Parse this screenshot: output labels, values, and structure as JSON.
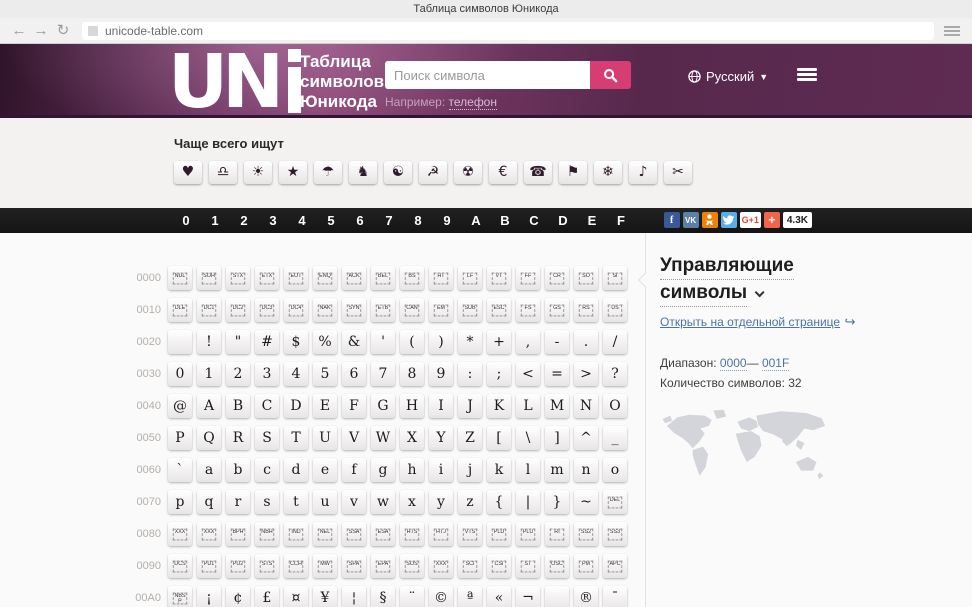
{
  "browser": {
    "title": "Таблица символов Юникода",
    "url": "unicode-table.com",
    "back": "←",
    "forward": "→",
    "reload": "↻"
  },
  "header": {
    "logo_text": "UN",
    "site_title_line1": "Таблица",
    "site_title_line2": "символов",
    "site_title_line3": "Юникода",
    "search_placeholder": "Поиск символа",
    "hint_label": "Например:",
    "hint_link": "телефон",
    "language": "Русский",
    "accent_color": "#d63d72"
  },
  "frequent": {
    "label": "Чаще всего ищут",
    "icons": [
      {
        "name": "heart-icon",
        "glyph": "♥"
      },
      {
        "name": "libra-icon",
        "glyph": "♎"
      },
      {
        "name": "sun-icon",
        "glyph": "☀"
      },
      {
        "name": "star-icon",
        "glyph": "★"
      },
      {
        "name": "umbrella-icon",
        "glyph": "☂"
      },
      {
        "name": "chess-knight-icon",
        "glyph": "♞"
      },
      {
        "name": "yin-yang-icon",
        "glyph": "☯"
      },
      {
        "name": "hammer-sickle-icon",
        "glyph": "☭"
      },
      {
        "name": "radioactive-icon",
        "glyph": "☢"
      },
      {
        "name": "euro-icon",
        "glyph": "€"
      },
      {
        "name": "telephone-icon",
        "glyph": "☎"
      },
      {
        "name": "flag-icon",
        "glyph": "⚑"
      },
      {
        "name": "snowflake-icon",
        "glyph": "❄"
      },
      {
        "name": "music-note-icon",
        "glyph": "♪"
      },
      {
        "name": "scissors-icon",
        "glyph": "✂"
      }
    ]
  },
  "hexbar": {
    "digits": [
      "0",
      "1",
      "2",
      "3",
      "4",
      "5",
      "6",
      "7",
      "8",
      "9",
      "A",
      "B",
      "C",
      "D",
      "E",
      "F"
    ],
    "social": {
      "facebook_label": "f",
      "vk_label": "VK",
      "gplus_label": "G+1",
      "share_label": "+",
      "share_count": "4.3K"
    }
  },
  "table": {
    "rows": [
      {
        "label": "0000",
        "cells": [
          {
            "ctrl": "NUL"
          },
          {
            "ctrl": "SOH"
          },
          {
            "ctrl": "STX"
          },
          {
            "ctrl": "ETX"
          },
          {
            "ctrl": "EOT"
          },
          {
            "ctrl": "ENQ"
          },
          {
            "ctrl": "ACK"
          },
          {
            "ctrl": "BEL"
          },
          {
            "ctrl": "BS"
          },
          {
            "ctrl": "HT"
          },
          {
            "ctrl": "LF"
          },
          {
            "ctrl": "VT"
          },
          {
            "ctrl": "FF"
          },
          {
            "ctrl": "CR"
          },
          {
            "ctrl": "SO"
          },
          {
            "ctrl": "SI"
          }
        ]
      },
      {
        "label": "0010",
        "cells": [
          {
            "ctrl": "DLE"
          },
          {
            "ctrl": "DC1"
          },
          {
            "ctrl": "DC2"
          },
          {
            "ctrl": "DC3"
          },
          {
            "ctrl": "DC4"
          },
          {
            "ctrl": "NAK"
          },
          {
            "ctrl": "SYN"
          },
          {
            "ctrl": "ETB"
          },
          {
            "ctrl": "CAN"
          },
          {
            "ctrl": "EM"
          },
          {
            "ctrl": "SUB"
          },
          {
            "ctrl": "ESC"
          },
          {
            "ctrl": "FS"
          },
          {
            "ctrl": "GS"
          },
          {
            "ctrl": "RS"
          },
          {
            "ctrl": "US"
          }
        ]
      },
      {
        "label": "0020",
        "cells": [
          "",
          "!",
          "\"",
          "#",
          "$",
          "%",
          "&",
          "'",
          "(",
          ")",
          "*",
          "+",
          ",",
          "-",
          ".",
          "/"
        ]
      },
      {
        "label": "0030",
        "cells": [
          "0",
          "1",
          "2",
          "3",
          "4",
          "5",
          "6",
          "7",
          "8",
          "9",
          ":",
          ";",
          "<",
          "=",
          ">",
          "?"
        ]
      },
      {
        "label": "0040",
        "cells": [
          "@",
          "A",
          "B",
          "C",
          "D",
          "E",
          "F",
          "G",
          "H",
          "I",
          "J",
          "K",
          "L",
          "M",
          "N",
          "O"
        ]
      },
      {
        "label": "0050",
        "cells": [
          "P",
          "Q",
          "R",
          "S",
          "T",
          "U",
          "V",
          "W",
          "X",
          "Y",
          "Z",
          "[",
          "\\",
          "]",
          "^",
          "_"
        ]
      },
      {
        "label": "0060",
        "cells": [
          "`",
          "a",
          "b",
          "c",
          "d",
          "e",
          "f",
          "g",
          "h",
          "i",
          "j",
          "k",
          "l",
          "m",
          "n",
          "o"
        ]
      },
      {
        "label": "0070",
        "cells": [
          "p",
          "q",
          "r",
          "s",
          "t",
          "u",
          "v",
          "w",
          "x",
          "y",
          "z",
          "{",
          "|",
          "}",
          "~",
          {
            "ctrl": "DEL"
          }
        ]
      },
      {
        "label": "0080",
        "cells": [
          {
            "ctrl": "XXX"
          },
          {
            "ctrl": "XXX"
          },
          {
            "ctrl": "BPH"
          },
          {
            "ctrl": "NBH"
          },
          {
            "ctrl": "IND"
          },
          {
            "ctrl": "NEL"
          },
          {
            "ctrl": "SSA"
          },
          {
            "ctrl": "ESA"
          },
          {
            "ctrl": "HTS"
          },
          {
            "ctrl": "HTJ"
          },
          {
            "ctrl": "VTS"
          },
          {
            "ctrl": "PLD"
          },
          {
            "ctrl": "PLU"
          },
          {
            "ctrl": "RI"
          },
          {
            "ctrl": "SS2"
          },
          {
            "ctrl": "SS3"
          }
        ]
      },
      {
        "label": "0090",
        "cells": [
          {
            "ctrl": "DCS"
          },
          {
            "ctrl": "PU1"
          },
          {
            "ctrl": "PU2"
          },
          {
            "ctrl": "STS"
          },
          {
            "ctrl": "CCH"
          },
          {
            "ctrl": "MW"
          },
          {
            "ctrl": "SPA"
          },
          {
            "ctrl": "EPA"
          },
          {
            "ctrl": "SOS"
          },
          {
            "ctrl": "XXX"
          },
          {
            "ctrl": "SCI"
          },
          {
            "ctrl": "CSI"
          },
          {
            "ctrl": "ST"
          },
          {
            "ctrl": "OSC"
          },
          {
            "ctrl": "PM"
          },
          {
            "ctrl": "APC"
          }
        ]
      },
      {
        "label": "00A0",
        "cells": [
          {
            "ctrl": "NBSP"
          },
          "¡",
          "¢",
          "£",
          "¤",
          "¥",
          "¦",
          "§",
          "¨",
          "©",
          "ª",
          "«",
          "¬",
          "",
          "®",
          "¯"
        ]
      }
    ]
  },
  "sidebar": {
    "title_line1": "Управляющие",
    "title_line2": "символы",
    "open_link": "Открыть на отдельной странице",
    "open_arrow": "↪",
    "range_label": "Диапазон:",
    "range_start": "0000",
    "range_dash": "—",
    "range_end": "001F",
    "count_label": "Количество символов:",
    "count_value": "32"
  }
}
